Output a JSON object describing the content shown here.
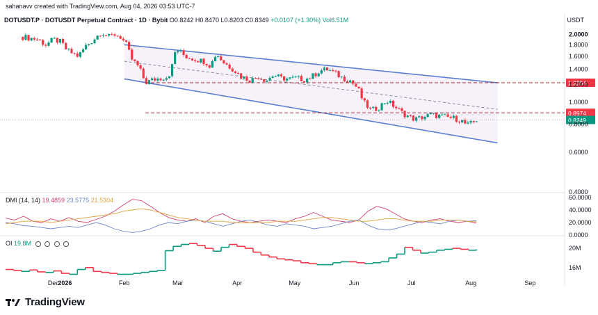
{
  "header": {
    "credit": "sahanavv created with TradingView.com, Aug 04, 2026 03:53 UTC-7",
    "symbol": "DOTUSDT.P · DOTUSDT Perpetual Contract · 1D · Bybit",
    "open": "O0.8242",
    "high": "H0.8470",
    "low": "L0.8203",
    "close": "C0.8349",
    "change": "+0.0107 (+1.30%)",
    "volume": "Vol6.51M",
    "currency": "USDT"
  },
  "colors": {
    "up": "#089981",
    "down": "#f23645",
    "channel": "#5b7fd1",
    "channel_fill": "#f7f2fa",
    "level": "#9c2731",
    "dmi_pdi": "#d2416b",
    "dmi_mdi": "#6a86c9",
    "dmi_adx": "#e0a23c",
    "oi_up": "#089981",
    "oi_down": "#f23645"
  },
  "chart_data": [
    {
      "type": "candlestick",
      "title": "DOTUSDT.P · DOTUSDT Perpetual Contract · 1D · Bybit",
      "y_scale": "log",
      "y_ticks": [
        "2.0000",
        "1.8000",
        "1.6000",
        "1.4000",
        "1.2000",
        "1.0000",
        "0.8000",
        "0.6000",
        "0.4000"
      ],
      "x_ticks": [
        "Dec",
        "2026",
        "Feb",
        "Mar",
        "Apr",
        "May",
        "Jun",
        "Jul",
        "Aug",
        "Sep"
      ],
      "price_labels": [
        {
          "value": 1.2204,
          "label": "1.2204",
          "color": "#f23645"
        },
        {
          "value": 0.8974,
          "label": "0.8974",
          "color": "#f23645"
        },
        {
          "value": 0.8349,
          "label": "0.8349",
          "color": "#089981"
        }
      ],
      "path": [
        {
          "date": "Dec 10",
          "price": 1.95
        },
        {
          "date": "Dec 18",
          "price": 1.9
        },
        {
          "date": "Dec 22",
          "price": 1.8
        },
        {
          "date": "Dec 26",
          "price": 1.9
        },
        {
          "date": "Dec 30",
          "price": 1.85
        },
        {
          "date": "Jan 2",
          "price": 1.7
        },
        {
          "date": "Jan 8",
          "price": 1.6
        },
        {
          "date": "Jan 12",
          "price": 1.78
        },
        {
          "date": "Jan 16",
          "price": 1.9
        },
        {
          "date": "Jan 20",
          "price": 2.05
        },
        {
          "date": "Jan 24",
          "price": 1.95
        },
        {
          "date": "Jan 27",
          "price": 2.0
        },
        {
          "date": "Jan 30",
          "price": 1.95
        },
        {
          "date": "Feb 2",
          "price": 1.8
        },
        {
          "date": "Feb 5",
          "price": 1.55
        },
        {
          "date": "Feb 8",
          "price": 1.45
        },
        {
          "date": "Feb 10",
          "price": 1.35
        },
        {
          "date": "Feb 12",
          "price": 1.22
        },
        {
          "date": "Feb 16",
          "price": 1.26
        },
        {
          "date": "Feb 20",
          "price": 1.28
        },
        {
          "date": "Feb 24",
          "price": 1.3
        },
        {
          "date": "Feb 26",
          "price": 1.45
        },
        {
          "date": "Feb 27",
          "price": 1.65
        },
        {
          "date": "Mar 1",
          "price": 1.7
        },
        {
          "date": "Mar 5",
          "price": 1.6
        },
        {
          "date": "Mar 10",
          "price": 1.55
        },
        {
          "date": "Mar 15",
          "price": 1.52
        },
        {
          "date": "Mar 18",
          "price": 1.45
        },
        {
          "date": "Mar 21",
          "price": 1.65
        },
        {
          "date": "Mar 25",
          "price": 1.5
        },
        {
          "date": "Mar 30",
          "price": 1.4
        },
        {
          "date": "Apr 3",
          "price": 1.3
        },
        {
          "date": "Apr 8",
          "price": 1.25
        },
        {
          "date": "Apr 12",
          "price": 1.3
        },
        {
          "date": "Apr 16",
          "price": 1.25
        },
        {
          "date": "Apr 20",
          "price": 1.32
        },
        {
          "date": "Apr 24",
          "price": 1.28
        },
        {
          "date": "Apr 28",
          "price": 1.27
        },
        {
          "date": "May 2",
          "price": 1.28
        },
        {
          "date": "May 6",
          "price": 1.26
        },
        {
          "date": "May 10",
          "price": 1.3
        },
        {
          "date": "May 14",
          "price": 1.38
        },
        {
          "date": "May 18",
          "price": 1.4
        },
        {
          "date": "May 22",
          "price": 1.35
        },
        {
          "date": "May 26",
          "price": 1.28
        },
        {
          "date": "May 30",
          "price": 1.25
        },
        {
          "date": "Jun 3",
          "price": 1.15
        },
        {
          "date": "Jun 6",
          "price": 1.0
        },
        {
          "date": "Jun 10",
          "price": 0.92
        },
        {
          "date": "Jun 14",
          "price": 0.95
        },
        {
          "date": "Jun 18",
          "price": 1.02
        },
        {
          "date": "Jun 22",
          "price": 0.96
        },
        {
          "date": "Jun 26",
          "price": 0.9
        },
        {
          "date": "Jun 30",
          "price": 0.86
        },
        {
          "date": "Jul 3",
          "price": 0.84
        },
        {
          "date": "Jul 7",
          "price": 0.86
        },
        {
          "date": "Jul 11",
          "price": 0.88
        },
        {
          "date": "Jul 15",
          "price": 0.87
        },
        {
          "date": "Jul 19",
          "price": 0.86
        },
        {
          "date": "Jul 23",
          "price": 0.85
        },
        {
          "date": "Jul 27",
          "price": 0.83
        },
        {
          "date": "Jul 30",
          "price": 0.79
        },
        {
          "date": "Aug 2",
          "price": 0.81
        },
        {
          "date": "Aug 4",
          "price": 0.8349
        }
      ],
      "channel": {
        "upper": [
          {
            "date": "Feb 1",
            "price": 1.8
          },
          {
            "date": "Aug 15",
            "price": 1.22
          }
        ],
        "lower": [
          {
            "date": "Feb 1",
            "price": 1.27
          },
          {
            "date": "Aug 15",
            "price": 0.66
          }
        ],
        "mid": [
          {
            "date": "Feb 1",
            "price": 1.52
          },
          {
            "date": "Aug 15",
            "price": 0.93
          }
        ]
      },
      "levels": [
        1.2204,
        0.8974
      ]
    },
    {
      "type": "line",
      "title": "DMI (14, 14)",
      "y_ticks": [
        "60.0000",
        "40.0000",
        "20.0000",
        "0.0000"
      ],
      "series": [
        {
          "name": "19.4859",
          "color": "#d2416b",
          "values": [
            27,
            24,
            30,
            22,
            20,
            26,
            22,
            28,
            22,
            20,
            25,
            30,
            38,
            48,
            57,
            55,
            46,
            36,
            28,
            24,
            22,
            26,
            20,
            30,
            34,
            26,
            22,
            20,
            22,
            24,
            22,
            20,
            26,
            30,
            36,
            30,
            24,
            22,
            20,
            24,
            38,
            46,
            42,
            34,
            26,
            22,
            20,
            24,
            26,
            22,
            20,
            22,
            19
          ]
        },
        {
          "name": "23.5775",
          "color": "#6a86c9",
          "values": [
            20,
            18,
            15,
            14,
            12,
            10,
            12,
            14,
            12,
            16,
            20,
            16,
            10,
            6,
            4,
            6,
            10,
            16,
            20,
            18,
            22,
            24,
            22,
            18,
            14,
            18,
            22,
            24,
            20,
            16,
            14,
            18,
            16,
            14,
            10,
            12,
            14,
            18,
            22,
            24,
            16,
            10,
            8,
            10,
            14,
            18,
            22,
            20,
            18,
            22,
            24,
            22,
            23
          ]
        },
        {
          "name": "21.5304",
          "color": "#e0a23c",
          "values": [
            18,
            20,
            22,
            22,
            22,
            20,
            22,
            24,
            26,
            28,
            30,
            32,
            34,
            38,
            40,
            42,
            40,
            36,
            32,
            28,
            26,
            24,
            22,
            22,
            22,
            20,
            20,
            20,
            20,
            20,
            22,
            22,
            22,
            24,
            26,
            28,
            28,
            26,
            24,
            22,
            22,
            24,
            26,
            26,
            24,
            22,
            22,
            22,
            24,
            24,
            24,
            22,
            21
          ]
        }
      ]
    },
    {
      "type": "step",
      "title": "OI",
      "legend_value": "19.8M",
      "y_ticks": [
        "20M",
        "16M"
      ],
      "series": [
        {
          "name": "19.8M",
          "values": [
            15.6,
            15.4,
            15.2,
            15.5,
            15.1,
            15.0,
            15.3,
            14.8,
            14.6,
            15.6,
            16.0,
            15.2,
            15.0,
            14.8,
            14.6,
            14.6,
            14.8,
            15.0,
            15.2,
            15.4,
            19.5,
            20.4,
            20.8,
            21.0,
            20.6,
            20.0,
            19.4,
            20.2,
            20.8,
            20.4,
            20.0,
            19.2,
            18.6,
            18.2,
            17.8,
            17.6,
            17.4,
            17.0,
            16.8,
            16.6,
            16.6,
            17.0,
            17.2,
            17.2,
            17.0,
            16.8,
            17.0,
            17.2,
            18.0,
            18.8,
            20.2,
            19.6,
            19.0,
            19.2,
            19.6,
            19.8,
            20.0,
            19.8,
            19.6,
            19.8
          ]
        }
      ]
    }
  ],
  "footer": {
    "brand": "TradingView"
  }
}
